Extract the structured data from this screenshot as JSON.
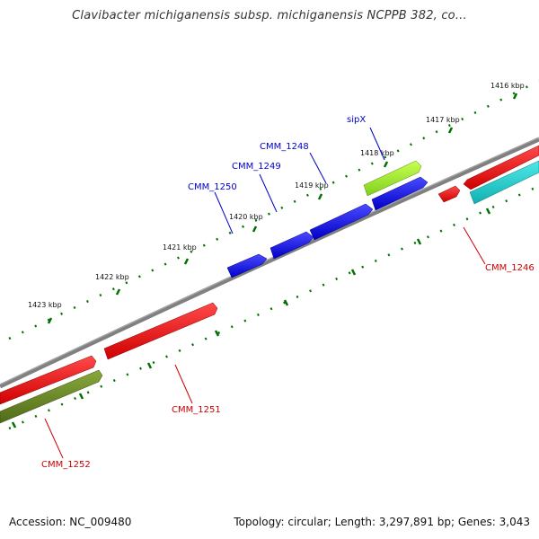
{
  "title": "Clavibacter michiganensis subsp. michiganensis NCPPB 382, co...",
  "footer": {
    "accession": "Accession: NC_009480",
    "summary": "Topology: circular; Length: 3,297,891 bp; Genes: 3,043"
  },
  "ticks": [
    {
      "label": "1416 kbp"
    },
    {
      "label": "1417 kbp"
    },
    {
      "label": "1418 kbp"
    },
    {
      "label": "1419 kbp"
    },
    {
      "label": "1420 kbp"
    },
    {
      "label": "1421 kbp"
    },
    {
      "label": "1422 kbp"
    },
    {
      "label": "1423 kbp"
    }
  ],
  "genes": [
    {
      "name": "sipX",
      "color": "#0000cc"
    },
    {
      "name": "CMM_1248",
      "color": "#0000cc"
    },
    {
      "name": "CMM_1249",
      "color": "#0000cc"
    },
    {
      "name": "CMM_1250",
      "color": "#0000cc"
    },
    {
      "name": "CMM_1246",
      "color": "#cc0000"
    },
    {
      "name": "CMM_1251",
      "color": "#cc0000"
    },
    {
      "name": "CMM_1252",
      "color": "#cc0000"
    }
  ],
  "colors": {
    "backbone": "#808080",
    "tick": "#007000",
    "forward_gene": "#0000ee",
    "reverse_gene": "#ee0000",
    "rna_gene": "#99ee22",
    "other_gene": "#22cccc",
    "pseudo_gene": "#6b8e23"
  }
}
